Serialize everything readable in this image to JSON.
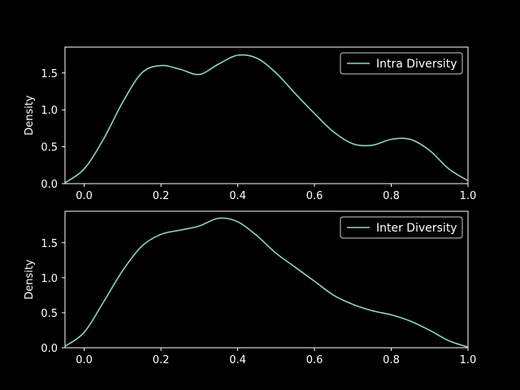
{
  "chart_data": [
    {
      "type": "line",
      "ylabel": "Density",
      "xlim": [
        -0.05,
        1.0
      ],
      "ylim": [
        0,
        1.85
      ],
      "x_ticks": [
        0.0,
        0.2,
        0.4,
        0.6,
        0.8,
        1.0
      ],
      "x_tick_labels": [
        "0.0",
        "0.2",
        "0.4",
        "0.6",
        "0.8",
        "1.0"
      ],
      "y_ticks": [
        0.0,
        0.5,
        1.0,
        1.5
      ],
      "y_tick_labels": [
        "0.0",
        "0.5",
        "1.0",
        "1.5"
      ],
      "legend_position": "top-right",
      "series": [
        {
          "name": "Intra Diversity",
          "color": "#8dd3c7",
          "x": [
            -0.05,
            0.0,
            0.05,
            0.1,
            0.15,
            0.2,
            0.25,
            0.3,
            0.35,
            0.4,
            0.45,
            0.5,
            0.55,
            0.6,
            0.65,
            0.7,
            0.75,
            0.8,
            0.85,
            0.9,
            0.95,
            1.0
          ],
          "y": [
            0.01,
            0.2,
            0.6,
            1.1,
            1.5,
            1.6,
            1.55,
            1.48,
            1.62,
            1.74,
            1.7,
            1.5,
            1.22,
            0.95,
            0.7,
            0.54,
            0.52,
            0.6,
            0.6,
            0.45,
            0.2,
            0.04
          ]
        }
      ]
    },
    {
      "type": "line",
      "ylabel": "Density",
      "xlim": [
        -0.05,
        1.0
      ],
      "ylim": [
        0,
        1.95
      ],
      "x_ticks": [
        0.0,
        0.2,
        0.4,
        0.6,
        0.8,
        1.0
      ],
      "x_tick_labels": [
        "0.0",
        "0.2",
        "0.4",
        "0.6",
        "0.8",
        "1.0"
      ],
      "y_ticks": [
        0.0,
        0.5,
        1.0,
        1.5
      ],
      "y_tick_labels": [
        "0.0",
        "0.5",
        "1.0",
        "1.5"
      ],
      "legend_position": "top-right",
      "series": [
        {
          "name": "Inter Diversity",
          "color": "#8dd3c7",
          "x": [
            -0.05,
            0.0,
            0.05,
            0.1,
            0.15,
            0.2,
            0.25,
            0.3,
            0.35,
            0.4,
            0.45,
            0.5,
            0.55,
            0.6,
            0.65,
            0.7,
            0.75,
            0.8,
            0.85,
            0.9,
            0.95,
            1.0
          ],
          "y": [
            0.02,
            0.22,
            0.65,
            1.1,
            1.45,
            1.62,
            1.68,
            1.74,
            1.85,
            1.8,
            1.6,
            1.35,
            1.15,
            0.95,
            0.75,
            0.62,
            0.53,
            0.47,
            0.38,
            0.25,
            0.1,
            0.01
          ]
        }
      ]
    }
  ]
}
